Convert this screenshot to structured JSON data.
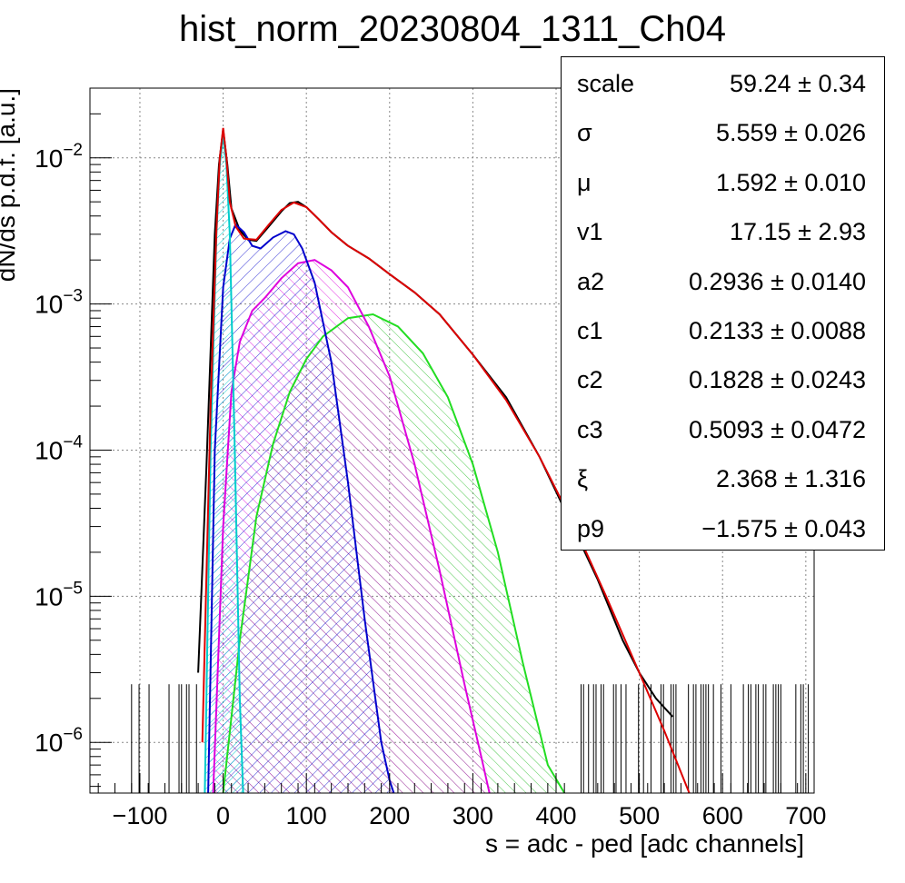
{
  "title": "hist_norm_20230804_1311_Ch04",
  "stats": [
    {
      "name": "scale",
      "value": "59.24",
      "error": "0.34"
    },
    {
      "name": "σ",
      "value": "5.559",
      "error": "0.026"
    },
    {
      "name": "μ",
      "value": "1.592",
      "error": "0.010"
    },
    {
      "name": "v1",
      "value": "17.15",
      "error": "2.93"
    },
    {
      "name": "a2",
      "value": "0.2936",
      "error": "0.0140"
    },
    {
      "name": "c1",
      "value": "0.2133",
      "error": "0.0088"
    },
    {
      "name": "c2",
      "value": "0.1828",
      "error": "0.0243"
    },
    {
      "name": "c3",
      "value": "0.5093",
      "error": "0.0472"
    },
    {
      "name": "ξ",
      "value": "2.368",
      "error": "1.316"
    },
    {
      "name": "p9",
      "value": "−1.575",
      "error": "0.043"
    }
  ],
  "chart_data": {
    "type": "line",
    "title": "hist_norm_20230804_1311_Ch04",
    "xlabel": "s = adc - ped [adc channels]",
    "ylabel": "dN/ds p.d.f. [a.u.]",
    "xlim": [
      -160,
      710
    ],
    "ylim": [
      4.5e-07,
      0.03
    ],
    "yscale": "log",
    "grid": true,
    "x_ticks": [
      -100,
      0,
      100,
      200,
      300,
      400,
      500,
      600,
      700
    ],
    "x_tick_labels": [
      "−100",
      "0",
      "100",
      "200",
      "300",
      "400",
      "500",
      "600",
      "700"
    ],
    "y_ticks": [
      {
        "value": 1e-06,
        "base": "10",
        "exp": "−6"
      },
      {
        "value": 1e-05,
        "base": "10",
        "exp": "−5"
      },
      {
        "value": 0.0001,
        "base": "10",
        "exp": "−4"
      },
      {
        "value": 0.001,
        "base": "10",
        "exp": "−3"
      },
      {
        "value": 0.01,
        "base": "10",
        "exp": "−2"
      }
    ],
    "series": [
      {
        "role": "data histogram",
        "color": "#000000",
        "x": [
          -30,
          -20,
          -10,
          -5,
          0,
          5,
          10,
          20,
          30,
          40,
          55,
          70,
          80,
          90,
          100,
          115,
          130,
          150,
          175,
          200,
          230,
          260,
          300,
          340,
          380,
          420,
          450,
          480,
          500,
          520,
          540
        ],
        "y": [
          3e-06,
          8e-05,
          0.003,
          0.009,
          0.0155,
          0.009,
          0.0045,
          0.0032,
          0.00275,
          0.0027,
          0.0034,
          0.0043,
          0.0049,
          0.005,
          0.0046,
          0.0038,
          0.0031,
          0.0025,
          0.00205,
          0.0016,
          0.0012,
          0.00085,
          0.00045,
          0.00023,
          9e-05,
          3e-05,
          1.3e-05,
          5e-06,
          3e-06,
          2e-06,
          1.5e-06
        ]
      },
      {
        "role": "total fit",
        "color": "#dd0000",
        "x": [
          -25,
          -15,
          -8,
          -4,
          0,
          4,
          8,
          15,
          25,
          40,
          55,
          70,
          85,
          100,
          115,
          130,
          150,
          175,
          200,
          230,
          260,
          300,
          340,
          380,
          420,
          460,
          500,
          530,
          560
        ],
        "y": [
          1e-06,
          0.0002,
          0.0032,
          0.01,
          0.016,
          0.01,
          0.005,
          0.0034,
          0.0028,
          0.00275,
          0.0035,
          0.0044,
          0.00495,
          0.0046,
          0.0038,
          0.0031,
          0.0025,
          0.00205,
          0.0016,
          0.0012,
          0.00085,
          0.00045,
          0.00022,
          9e-05,
          3.2e-05,
          1e-05,
          3e-06,
          1.2e-06,
          4.5e-07
        ]
      },
      {
        "role": "pedestal component",
        "color": "#00cccc",
        "x": [
          -22,
          -15,
          -8,
          -4,
          0,
          4,
          8,
          14,
          20,
          24
        ],
        "y": [
          4.5e-07,
          0.0001,
          0.003,
          0.009,
          0.0145,
          0.009,
          0.003,
          0.0001,
          2e-06,
          4.5e-07
        ]
      },
      {
        "role": "1 p.e. component",
        "color": "#0000cc",
        "x": [
          -18,
          -10,
          0,
          8,
          15,
          25,
          35,
          45,
          60,
          75,
          85,
          95,
          110,
          130,
          150,
          170,
          190,
          200,
          205
        ],
        "y": [
          4.5e-07,
          0.0001,
          0.0013,
          0.0028,
          0.0035,
          0.0031,
          0.0025,
          0.0024,
          0.00285,
          0.00315,
          0.003,
          0.0024,
          0.0014,
          0.0004,
          6e-05,
          7e-06,
          1e-06,
          5.5e-07,
          4.5e-07
        ]
      },
      {
        "role": "2 p.e. component",
        "color": "#dd00dd",
        "x": [
          -12,
          0,
          10,
          20,
          35,
          50,
          70,
          90,
          110,
          130,
          150,
          175,
          200,
          230,
          260,
          290,
          310,
          320
        ],
        "y": [
          4.5e-07,
          3e-05,
          0.00025,
          0.00055,
          0.0009,
          0.0011,
          0.0015,
          0.0019,
          0.002,
          0.0017,
          0.0013,
          0.0007,
          0.00032,
          8e-05,
          1.5e-05,
          2.5e-06,
          8e-07,
          4.5e-07
        ]
      },
      {
        "role": "3 p.e. component",
        "color": "#22dd22",
        "x": [
          0,
          20,
          40,
          60,
          80,
          100,
          120,
          150,
          180,
          210,
          240,
          270,
          300,
          330,
          360,
          390,
          410
        ],
        "y": [
          4.5e-07,
          5e-06,
          3.5e-05,
          0.00011,
          0.00025,
          0.00042,
          0.0006,
          0.0008,
          0.00085,
          0.0007,
          0.00046,
          0.00023,
          8e-05,
          2e-05,
          3.5e-06,
          7e-07,
          4.5e-07
        ]
      }
    ]
  }
}
